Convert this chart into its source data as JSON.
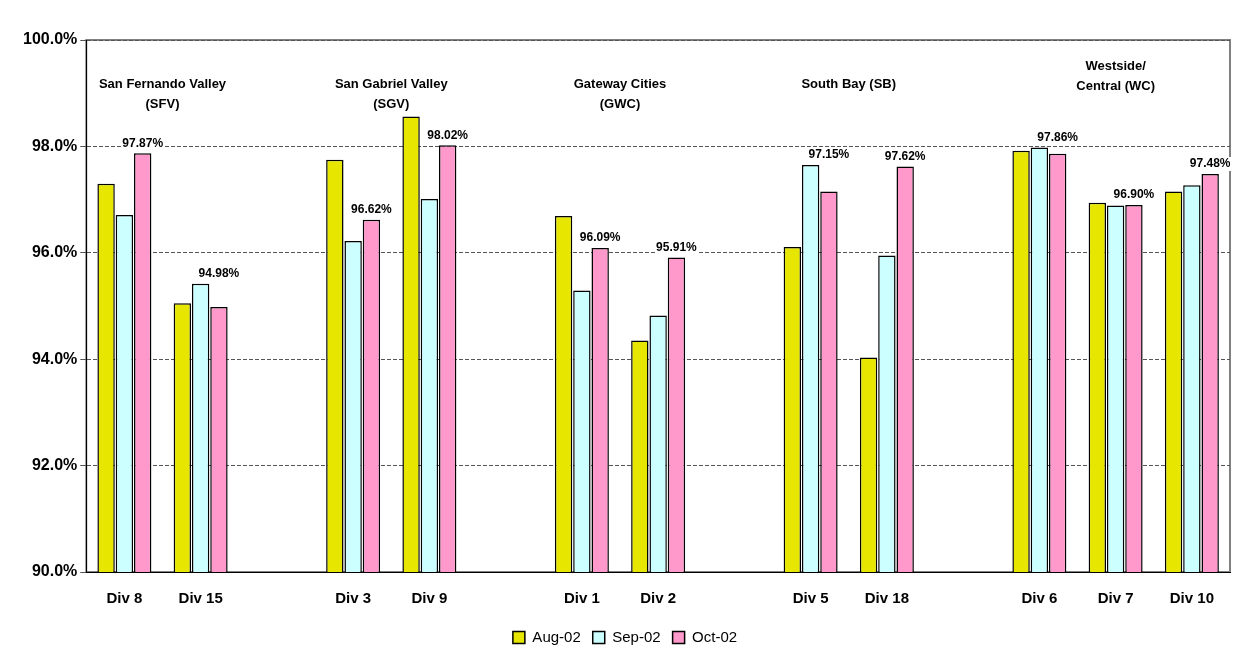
{
  "chart_data": {
    "type": "bar",
    "categories": [
      "Div 8",
      "Div 15",
      null,
      "Div 3",
      "Div 9",
      null,
      "Div 1",
      "Div 2",
      null,
      "Div 5",
      "Div 18",
      null,
      "Div 6",
      "Div 7",
      "Div 10"
    ],
    "series": [
      {
        "name": "Aug-02",
        "color": "#e6e600",
        "values": [
          97.3,
          95.05,
          null,
          97.75,
          98.56,
          null,
          96.69,
          94.35,
          null,
          96.11,
          94.03,
          null,
          97.92,
          96.94,
          97.15
        ]
      },
      {
        "name": "Sep-02",
        "color": "#ccffff",
        "values": [
          96.71,
          95.42,
          null,
          96.22,
          97.01,
          null,
          95.29,
          94.82,
          null,
          97.65,
          95.95,
          null,
          97.98,
          96.89,
          97.27
        ]
      },
      {
        "name": "Oct-02",
        "color": "#ff99cc",
        "values": [
          97.87,
          94.98,
          null,
          96.62,
          98.02,
          null,
          96.09,
          95.91,
          null,
          97.15,
          97.62,
          null,
          97.86,
          96.9,
          97.48
        ],
        "value_labels": [
          "97.87%",
          "94.98%",
          null,
          "96.62%",
          "98.02%",
          null,
          "96.09%",
          "95.91%",
          null,
          "97.15%",
          "97.62%",
          null,
          "97.86%",
          "96.90%",
          "97.48%"
        ]
      }
    ],
    "ylim": [
      90,
      100
    ],
    "yticks": [
      {
        "value": 90,
        "label": "90.0%"
      },
      {
        "value": 92,
        "label": "92.0%"
      },
      {
        "value": 94,
        "label": "94.0%"
      },
      {
        "value": 96,
        "label": "96.0%"
      },
      {
        "value": 98,
        "label": "98.0%"
      },
      {
        "value": 100,
        "label": "100.0%"
      }
    ],
    "grid": "y",
    "legend": "bottom",
    "annotations": [
      "San Fernando Valley\n(SFV)",
      "San Gabriel Valley\n(SGV)",
      "Gateway Cities\n(GWC)",
      "South Bay (SB)",
      "Westside/\nCentral (WC)"
    ]
  }
}
